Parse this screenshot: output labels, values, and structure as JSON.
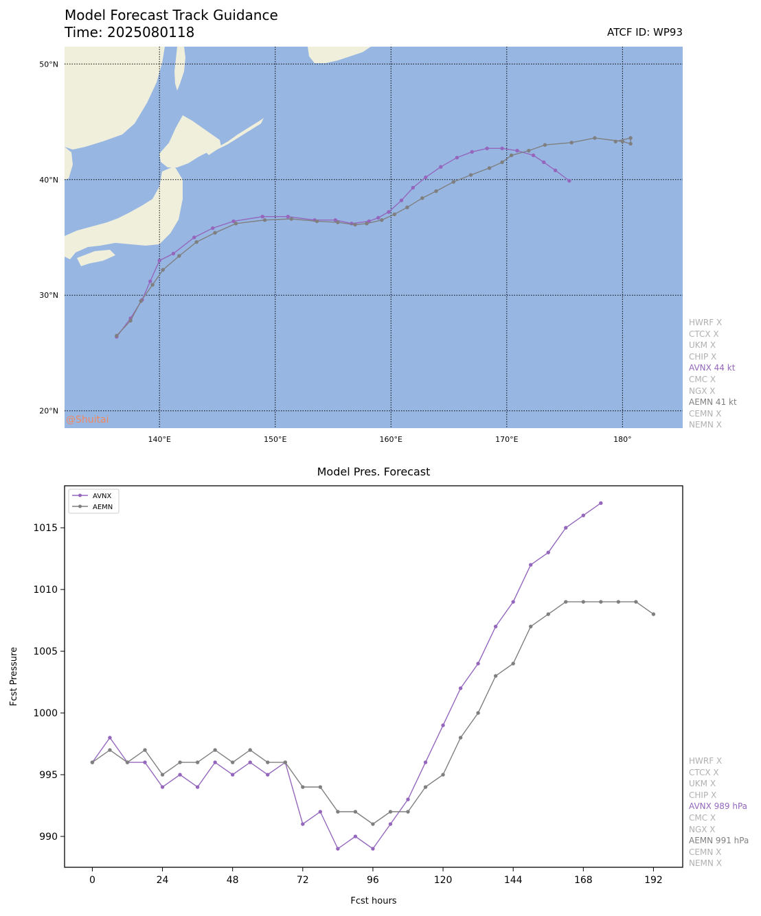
{
  "header": {
    "title_line1": "Model Forecast Track Guidance",
    "title_line2": "Time: 2025080118",
    "atcf_id": "ATCF ID: WP93"
  },
  "watermark": "@Shuitai",
  "colors": {
    "ocean": "#98b6e2",
    "land": "#efefdc",
    "AVNX": "#9467bd",
    "AEMN": "#7f7f7f",
    "inactive": "#b0b0b0",
    "watermark": "#f08860"
  },
  "map_legend": [
    {
      "text": "HWRF X",
      "status": "inactive"
    },
    {
      "text": "CTCX X",
      "status": "inactive"
    },
    {
      "text": "UKM X",
      "status": "inactive"
    },
    {
      "text": "CHIP X",
      "status": "inactive"
    },
    {
      "text": "AVNX 44 kt",
      "status": "AVNX"
    },
    {
      "text": "CMC X",
      "status": "inactive"
    },
    {
      "text": "NGX X",
      "status": "inactive"
    },
    {
      "text": "AEMN 41 kt",
      "status": "AEMN"
    },
    {
      "text": "CEMN X",
      "status": "inactive"
    },
    {
      "text": "NEMN X",
      "status": "inactive"
    }
  ],
  "pressure_legend": [
    {
      "text": "HWRF X",
      "status": "inactive"
    },
    {
      "text": "CTCX X",
      "status": "inactive"
    },
    {
      "text": "UKM X",
      "status": "inactive"
    },
    {
      "text": "CHIP X",
      "status": "inactive"
    },
    {
      "text": "AVNX 989 hPa",
      "status": "AVNX"
    },
    {
      "text": "CMC X",
      "status": "inactive"
    },
    {
      "text": "NGX X",
      "status": "inactive"
    },
    {
      "text": "AEMN 991 hPa",
      "status": "AEMN"
    },
    {
      "text": "CEMN X",
      "status": "inactive"
    },
    {
      "text": "NEMN X",
      "status": "inactive"
    }
  ],
  "chart_data": [
    {
      "type": "scatter",
      "title": "",
      "projection": "map",
      "lon_range": [
        131.8,
        185.2
      ],
      "lat_range": [
        18.5,
        51.5
      ],
      "lon_ticks": [
        140,
        150,
        160,
        170,
        180
      ],
      "lon_tick_labels": [
        "140°E",
        "150°E",
        "160°E",
        "170°E",
        "180°"
      ],
      "lat_ticks": [
        20,
        30,
        40,
        50
      ],
      "lat_tick_labels": [
        "20°N",
        "30°N",
        "40°N",
        "50°N"
      ],
      "grid": true,
      "series": [
        {
          "name": "AVNX",
          "lon": [
            136.3,
            137.5,
            138.5,
            139.2,
            140.0,
            141.2,
            143.0,
            144.6,
            146.4,
            148.9,
            151.1,
            153.4,
            155.2,
            156.6,
            158.1,
            158.9,
            159.8,
            160.9,
            161.9,
            163.0,
            164.3,
            165.7,
            167.0,
            168.3,
            169.6,
            170.9,
            172.3,
            173.2,
            174.2,
            175.4
          ],
          "lat": [
            26.4,
            28.0,
            29.6,
            31.2,
            33.0,
            33.6,
            35.0,
            35.8,
            36.4,
            36.8,
            36.8,
            36.5,
            36.5,
            36.2,
            36.4,
            36.7,
            37.2,
            38.2,
            39.3,
            40.2,
            41.1,
            41.9,
            42.4,
            42.7,
            42.7,
            42.5,
            42.1,
            41.5,
            40.8,
            39.9
          ]
        },
        {
          "name": "AEMN",
          "lon": [
            136.3,
            137.5,
            138.4,
            139.4,
            140.3,
            141.7,
            143.2,
            144.8,
            146.6,
            149.1,
            151.4,
            153.6,
            155.4,
            156.9,
            157.9,
            159.2,
            160.3,
            161.4,
            162.7,
            163.9,
            165.4,
            166.9,
            168.5,
            169.6,
            170.4,
            171.9,
            173.3,
            175.6,
            177.6,
            180.0,
            180.7,
            180.7,
            179.4
          ],
          "lat": [
            26.5,
            27.8,
            29.5,
            30.9,
            32.2,
            33.4,
            34.6,
            35.4,
            36.2,
            36.5,
            36.6,
            36.4,
            36.3,
            36.1,
            36.2,
            36.5,
            37.0,
            37.6,
            38.4,
            39.0,
            39.8,
            40.4,
            41.0,
            41.5,
            42.1,
            42.5,
            43.0,
            43.2,
            43.6,
            43.3,
            43.1,
            43.6,
            43.3
          ]
        }
      ]
    },
    {
      "type": "line",
      "title": "Model Pres. Forecast",
      "xlabel": "Fcst hours",
      "ylabel": "Fcst Pressure",
      "xlim": [
        -9.5,
        202
      ],
      "ylim": [
        987.5,
        1018.4
      ],
      "xticks": [
        0,
        24,
        48,
        72,
        96,
        120,
        144,
        168,
        192
      ],
      "yticks": [
        990,
        995,
        1000,
        1005,
        1010,
        1015
      ],
      "legend_location": "top-left",
      "series": [
        {
          "name": "AVNX",
          "x": [
            0,
            6,
            12,
            18,
            24,
            30,
            36,
            42,
            48,
            54,
            60,
            66,
            72,
            78,
            84,
            90,
            96,
            102,
            108,
            114,
            120,
            126,
            132,
            138,
            144,
            150,
            156,
            162,
            168,
            174
          ],
          "y": [
            996,
            998,
            996,
            996,
            994,
            995,
            994,
            996,
            995,
            996,
            995,
            996,
            991,
            992,
            989,
            990,
            989,
            991,
            993,
            996,
            999,
            1002,
            1004,
            1007,
            1009,
            1012,
            1013,
            1015,
            1016,
            1017
          ]
        },
        {
          "name": "AEMN",
          "x": [
            0,
            6,
            12,
            18,
            24,
            30,
            36,
            42,
            48,
            54,
            60,
            66,
            72,
            78,
            84,
            90,
            96,
            102,
            108,
            114,
            120,
            126,
            132,
            138,
            144,
            150,
            156,
            162,
            168,
            174,
            180,
            186,
            192
          ],
          "y": [
            996,
            997,
            996,
            997,
            995,
            996,
            996,
            997,
            996,
            997,
            996,
            996,
            994,
            994,
            992,
            992,
            991,
            992,
            992,
            994,
            995,
            998,
            1000,
            1003,
            1004,
            1007,
            1008,
            1009,
            1009,
            1009,
            1009,
            1009,
            1008
          ]
        }
      ]
    }
  ]
}
